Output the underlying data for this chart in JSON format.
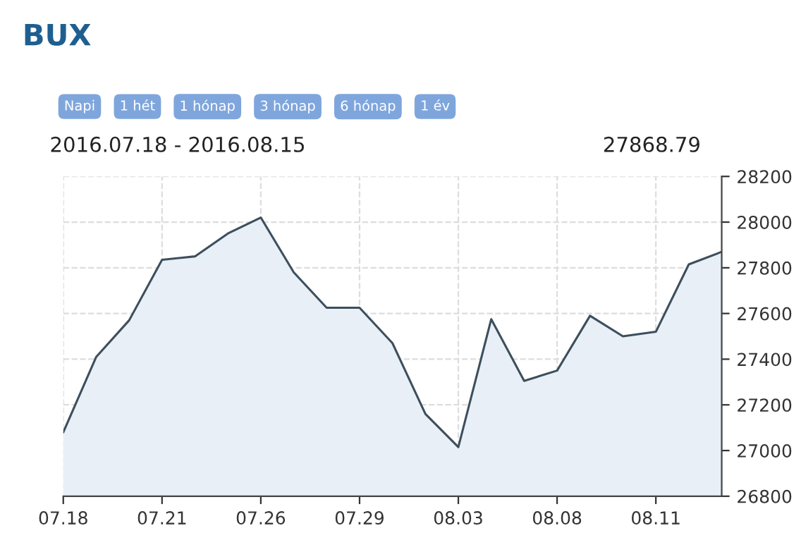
{
  "chart_data": {
    "type": "area",
    "title": "BUX",
    "subtitle": "2016.07.18 - 2016.08.15",
    "annotations": [
      "Napi",
      "1 hét",
      "1 hónap",
      "3 hónap",
      "6 hónap",
      "1 év",
      "27868.79"
    ],
    "categories": [
      "07.18",
      null,
      null,
      "07.21",
      null,
      null,
      "07.26",
      null,
      null,
      "07.29",
      null,
      null,
      "08.03",
      null,
      null,
      "08.08",
      null,
      null,
      "08.11",
      null,
      null
    ],
    "series": [
      {
        "color": "#3d4f5c",
        "values": [
          27080,
          27410,
          27570,
          27835,
          27850,
          27950,
          28020,
          27780,
          27625,
          27625,
          27470,
          27160,
          27015,
          27575,
          27305,
          27350,
          27590,
          27500,
          27520,
          27815,
          27870
        ]
      }
    ],
    "ylim": [
      26800,
      28200
    ],
    "yticks": [
      26800,
      27000,
      27200,
      27400,
      27600,
      27800,
      28000,
      28200
    ],
    "grid": true
  }
}
